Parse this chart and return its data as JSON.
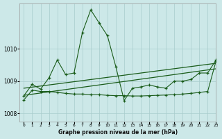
{
  "xlabel": "Graphe pression niveau de la mer (hPa)",
  "ylim": [
    1007.75,
    1011.4
  ],
  "yticks": [
    1008,
    1009,
    1010
  ],
  "xlim": [
    -0.5,
    23
  ],
  "xticks": [
    0,
    1,
    2,
    3,
    4,
    5,
    6,
    7,
    8,
    9,
    10,
    11,
    12,
    13,
    14,
    15,
    16,
    17,
    18,
    19,
    20,
    21,
    22,
    23
  ],
  "background_color": "#cce8e8",
  "line_color": "#1a5c1a",
  "series1": [
    1008.55,
    1008.9,
    1008.75,
    1009.1,
    1009.65,
    1009.2,
    1009.25,
    1010.5,
    1011.2,
    1010.8,
    1010.4,
    1009.45,
    1008.4,
    1008.78,
    1008.82,
    1008.88,
    1008.82,
    1008.78,
    1009.0,
    1009.0,
    1009.05,
    1009.25,
    1009.25,
    1009.65
  ],
  "series2": [
    1008.42,
    1008.72,
    1008.68,
    1008.68,
    1008.65,
    1008.62,
    1008.6,
    1008.6,
    1008.58,
    1008.58,
    1008.56,
    1008.55,
    1008.55,
    1008.54,
    1008.54,
    1008.55,
    1008.56,
    1008.57,
    1008.58,
    1008.6,
    1008.62,
    1008.65,
    1008.68,
    1009.62
  ],
  "trend1_x": [
    0,
    23
  ],
  "trend1_y": [
    1008.78,
    1009.55
  ],
  "trend2_x": [
    0,
    23
  ],
  "trend2_y": [
    1008.56,
    1009.38
  ]
}
